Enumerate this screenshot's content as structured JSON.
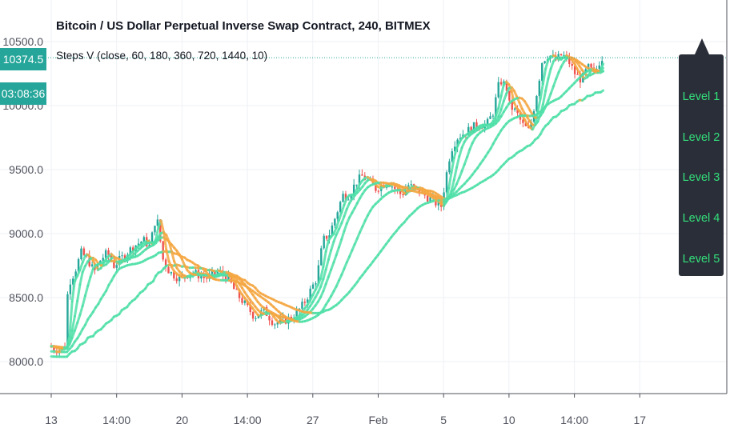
{
  "header": {
    "title": "Bitcoin / US Dollar Perpetual Inverse Swap Contract, 240, BITMEX",
    "indicator": "Steps V (close, 60, 180, 360, 720, 1440, 10)"
  },
  "price_tag": "10374.5",
  "countdown_tag": "03:08:36",
  "tooltip": {
    "levels": [
      "Level 1",
      "Level 2",
      "Level 3",
      "Level 4",
      "Level 5"
    ]
  },
  "colors": {
    "up": "#26a69a",
    "down": "#ef5350",
    "bull_line": "#4fe0a8",
    "bear_line": "#f5a742",
    "tag": "#26a69a",
    "tooltip_bg": "#2a2e39",
    "tooltip_text": "#33e07a"
  },
  "chart_data": {
    "type": "line",
    "ylim": [
      7900,
      10650
    ],
    "y_ticks": [
      "10500.0",
      "10000.0",
      "9500.0",
      "9000.0",
      "8500.0",
      "8000.0"
    ],
    "y_tick_values": [
      10500,
      10000,
      9500,
      9000,
      8500,
      8000
    ],
    "xlim": [
      12.95,
      17.3
    ],
    "x_ticks": [
      "13",
      "14:00",
      "20",
      "14:00",
      "27",
      "Feb",
      "5",
      "10",
      "14:00",
      "17"
    ],
    "x_tick_values": [
      13,
      14.5,
      20,
      21.5,
      27,
      28.5,
      5,
      10,
      11.5,
      17
    ],
    "x_tick_positions_days": [
      0,
      1.0,
      2.0,
      3.0,
      4.0,
      5.0,
      6.0,
      7.0,
      8.0,
      9.0
    ],
    "last_price": 10374.5,
    "close_path": [
      [
        0.0,
        8120
      ],
      [
        0.15,
        8090
      ],
      [
        0.25,
        8120
      ],
      [
        0.3,
        8600
      ],
      [
        0.4,
        8700
      ],
      [
        0.5,
        8850
      ],
      [
        0.6,
        8800
      ],
      [
        0.7,
        8700
      ],
      [
        0.8,
        8800
      ],
      [
        0.9,
        8850
      ],
      [
        1.0,
        8750
      ],
      [
        1.1,
        8800
      ],
      [
        1.2,
        8850
      ],
      [
        1.3,
        8900
      ],
      [
        1.45,
        8950
      ],
      [
        1.55,
        8900
      ],
      [
        1.65,
        9150
      ],
      [
        1.75,
        8800
      ],
      [
        1.85,
        8700
      ],
      [
        2.0,
        8650
      ],
      [
        2.2,
        8700
      ],
      [
        2.4,
        8650
      ],
      [
        2.6,
        8700
      ],
      [
        2.75,
        8650
      ],
      [
        2.85,
        8550
      ],
      [
        3.0,
        8450
      ],
      [
        3.15,
        8350
      ],
      [
        3.3,
        8400
      ],
      [
        3.45,
        8300
      ],
      [
        3.6,
        8320
      ],
      [
        3.75,
        8350
      ],
      [
        3.9,
        8450
      ],
      [
        4.0,
        8550
      ],
      [
        4.1,
        8650
      ],
      [
        4.2,
        8950
      ],
      [
        4.3,
        9000
      ],
      [
        4.4,
        9150
      ],
      [
        4.5,
        9300
      ],
      [
        4.6,
        9300
      ],
      [
        4.7,
        9400
      ],
      [
        4.8,
        9450
      ],
      [
        4.9,
        9400
      ],
      [
        5.0,
        9350
      ],
      [
        5.1,
        9380
      ],
      [
        5.2,
        9400
      ],
      [
        5.3,
        9350
      ],
      [
        5.4,
        9300
      ],
      [
        5.5,
        9380
      ],
      [
        5.6,
        9350
      ],
      [
        5.75,
        9300
      ],
      [
        5.9,
        9250
      ],
      [
        6.0,
        9200
      ],
      [
        6.08,
        9450
      ],
      [
        6.15,
        9650
      ],
      [
        6.25,
        9750
      ],
      [
        6.4,
        9800
      ],
      [
        6.55,
        9850
      ],
      [
        6.7,
        9850
      ],
      [
        6.8,
        9950
      ],
      [
        6.9,
        10200
      ],
      [
        7.0,
        10150
      ],
      [
        7.05,
        10000
      ],
      [
        7.15,
        9950
      ],
      [
        7.25,
        9850
      ],
      [
        7.35,
        9800
      ],
      [
        7.45,
        10050
      ],
      [
        7.55,
        10350
      ],
      [
        7.65,
        10400
      ],
      [
        7.75,
        10350
      ],
      [
        7.85,
        10400
      ],
      [
        7.95,
        10350
      ],
      [
        8.05,
        10250
      ],
      [
        8.15,
        10200
      ],
      [
        8.25,
        10300
      ],
      [
        8.35,
        10250
      ],
      [
        8.45,
        10374.5
      ]
    ],
    "series": [
      {
        "name": "Level 1",
        "lag": 0.06,
        "offset": 0.0
      },
      {
        "name": "Level 2",
        "lag": 0.18,
        "offset": 0.01
      },
      {
        "name": "Level 3",
        "lag": 0.36,
        "offset": 0.02
      },
      {
        "name": "Level 4",
        "lag": 0.72,
        "offset": 0.03
      },
      {
        "name": "Level 5",
        "lag": 1.44,
        "offset": 0.045
      }
    ]
  }
}
